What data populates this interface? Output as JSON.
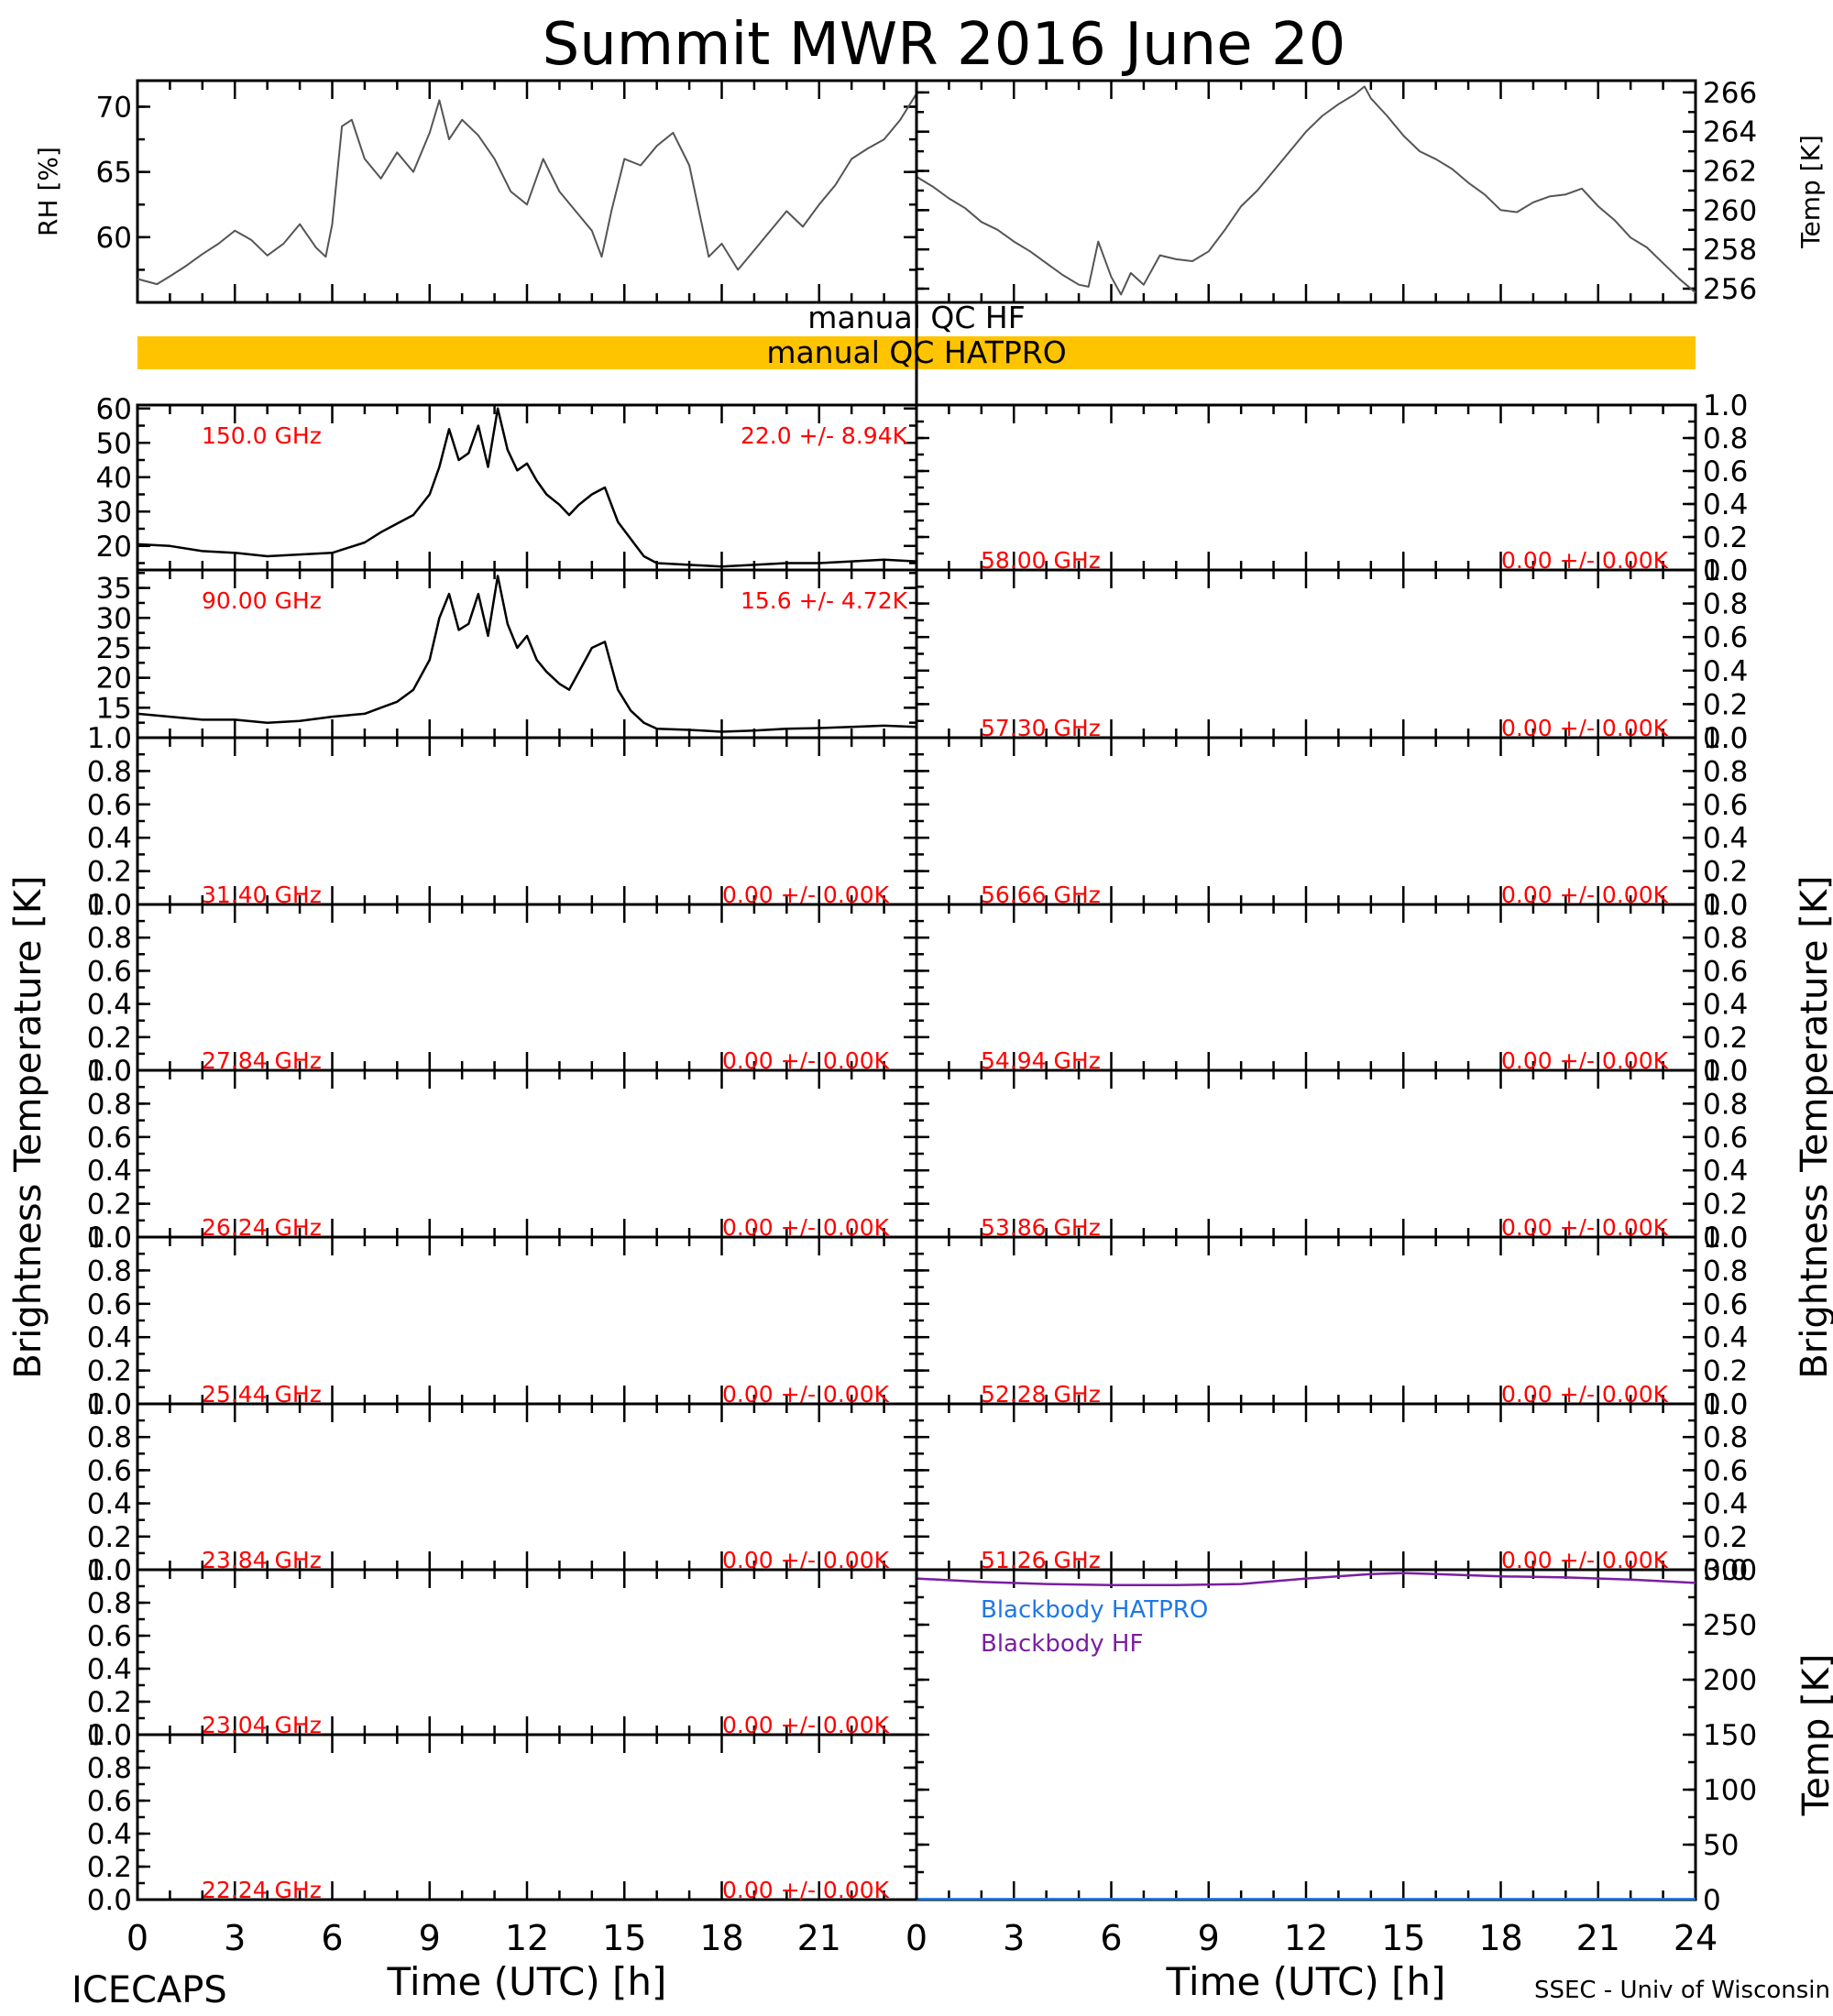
{
  "page": {
    "title": "Summit MWR 2016 June 20",
    "footer_left": "ICECAPS",
    "footer_right": "SSEC - Univ of Wisconsin",
    "xlabel": "Time (UTC) [h]",
    "left_axis_label": "Brightness Temperature [K]",
    "right_axis_label": "Brightness Temperature [K]",
    "qc_hf_label": "manual QC HF",
    "qc_hatpro_label": "manual QC HATPRO",
    "qc_hatpro_color": "#ffc400",
    "x_ticks": [
      "0",
      "3",
      "6",
      "9",
      "12",
      "15",
      "18",
      "21",
      "24"
    ]
  },
  "chart_data": [
    {
      "id": "rh",
      "type": "line",
      "ylabel": "RH [%]",
      "xlim": [
        0,
        24
      ],
      "ylim": [
        55,
        72
      ],
      "y_ticks": [
        "60",
        "65",
        "70"
      ],
      "series": [
        {
          "color": "#555555",
          "x": [
            0,
            0.6,
            1,
            1.5,
            2,
            2.5,
            3,
            3.5,
            4,
            4.5,
            5,
            5.5,
            5.8,
            6,
            6.3,
            6.6,
            7,
            7.5,
            8,
            8.5,
            9,
            9.3,
            9.6,
            10,
            10.5,
            11,
            11.5,
            12,
            12.5,
            13,
            13.5,
            14,
            14.3,
            14.6,
            15,
            15.5,
            16,
            16.5,
            17,
            17.3,
            17.6,
            18,
            18.5,
            19,
            19.5,
            20,
            20.5,
            21,
            21.5,
            22,
            22.5,
            23,
            23.5,
            24
          ],
          "y": [
            56.8,
            56.4,
            57,
            57.8,
            58.7,
            59.5,
            60.5,
            59.8,
            58.6,
            59.5,
            61,
            59.2,
            58.5,
            61,
            68.5,
            69,
            66,
            64.5,
            66.5,
            65,
            68,
            70.5,
            67.5,
            69,
            67.8,
            66,
            63.5,
            62.5,
            66,
            63.5,
            62,
            60.5,
            58.5,
            62,
            66,
            65.5,
            67,
            68,
            65.5,
            62,
            58.5,
            59.5,
            57.5,
            59,
            60.5,
            62,
            60.8,
            62.5,
            64,
            66,
            66.8,
            67.5,
            69,
            71
          ]
        }
      ]
    },
    {
      "id": "temp",
      "type": "line",
      "ylabel": "Temp [K]",
      "xlim": [
        0,
        24
      ],
      "ylim": [
        255.3,
        266.6
      ],
      "y_ticks": [
        "256",
        "258",
        "260",
        "262",
        "264",
        "266"
      ],
      "series": [
        {
          "color": "#555555",
          "x": [
            0,
            0.5,
            1,
            1.5,
            2,
            2.5,
            3,
            3.5,
            4,
            4.5,
            5,
            5.3,
            5.6,
            6,
            6.3,
            6.6,
            7,
            7.5,
            8,
            8.5,
            9,
            9.5,
            10,
            10.5,
            11,
            11.5,
            12,
            12.5,
            13,
            13.5,
            13.8,
            14,
            14.5,
            15,
            15.5,
            16,
            16.5,
            17,
            17.5,
            18,
            18.5,
            19,
            19.5,
            20,
            20.5,
            21,
            21.5,
            22,
            22.5,
            23,
            23.5,
            24
          ],
          "y": [
            261.7,
            261.2,
            260.6,
            260.1,
            259.4,
            259,
            258.4,
            257.9,
            257.3,
            256.7,
            256.2,
            256.1,
            258.4,
            256.6,
            255.7,
            256.8,
            256.2,
            257.7,
            257.5,
            257.4,
            257.9,
            259,
            260.2,
            261,
            262,
            263,
            264,
            264.8,
            265.4,
            265.9,
            266.3,
            265.7,
            264.8,
            263.8,
            263,
            262.6,
            262.1,
            261.4,
            260.8,
            260,
            259.9,
            260.4,
            260.7,
            260.8,
            261.1,
            260.2,
            259.5,
            258.6,
            258.1,
            257.3,
            256.5,
            255.8
          ]
        }
      ]
    },
    {
      "id": "ch150",
      "type": "line",
      "channel": "150.0 GHz",
      "stats": "22.0 +/-  8.94K",
      "xlim": [
        0,
        24
      ],
      "ylim": [
        13,
        61
      ],
      "y_ticks": [
        "20",
        "30",
        "40",
        "50",
        "60"
      ],
      "series": [
        {
          "color": "#000000",
          "x": [
            0,
            1,
            2,
            3,
            4,
            5,
            6,
            7,
            7.5,
            8,
            8.5,
            9,
            9.3,
            9.6,
            9.9,
            10.2,
            10.5,
            10.8,
            11.1,
            11.4,
            11.7,
            12,
            12.3,
            12.6,
            13,
            13.3,
            13.6,
            14,
            14.4,
            14.8,
            15.2,
            15.6,
            16,
            17,
            18,
            19,
            20,
            21,
            22,
            23,
            24
          ],
          "y": [
            20.5,
            20,
            18.5,
            18,
            17,
            17.5,
            18,
            21,
            24,
            26.5,
            29,
            35,
            43,
            54,
            45,
            47,
            55,
            43,
            60,
            48,
            42,
            44,
            39,
            35,
            32,
            29,
            32,
            35,
            37,
            27,
            22,
            17,
            15,
            14.5,
            14,
            14.5,
            15,
            15,
            15.5,
            16,
            15.5
          ]
        }
      ]
    },
    {
      "id": "ch090",
      "type": "line",
      "channel": "90.00 GHz",
      "stats": "15.6 +/-  4.72K",
      "xlim": [
        0,
        24
      ],
      "ylim": [
        10,
        38
      ],
      "y_ticks": [
        "15",
        "20",
        "25",
        "30",
        "35"
      ],
      "series": [
        {
          "color": "#000000",
          "x": [
            0,
            1,
            2,
            3,
            4,
            5,
            6,
            7,
            7.5,
            8,
            8.5,
            9,
            9.3,
            9.6,
            9.9,
            10.2,
            10.5,
            10.8,
            11.1,
            11.4,
            11.7,
            12,
            12.3,
            12.6,
            13,
            13.3,
            13.6,
            14,
            14.4,
            14.8,
            15.2,
            15.6,
            16,
            17,
            18,
            19,
            20,
            21,
            22,
            23,
            24
          ],
          "y": [
            14,
            13.5,
            13,
            13,
            12.5,
            12.8,
            13.5,
            14,
            15,
            16,
            18,
            23,
            30,
            34,
            28,
            29,
            34,
            27,
            37,
            29,
            25,
            27,
            23,
            21,
            19,
            18,
            21,
            25,
            26,
            18,
            14.5,
            12.5,
            11.5,
            11.3,
            11,
            11.2,
            11.5,
            11.6,
            11.8,
            12,
            11.8
          ]
        }
      ]
    },
    {
      "id": "ch3140",
      "type": "line",
      "channel": "31.40 GHz",
      "stats": "0.00 +/-  0.00K",
      "ylim": [
        0,
        1
      ],
      "y_ticks": [
        "0.0",
        "0.2",
        "0.4",
        "0.6",
        "0.8",
        "1.0"
      ],
      "series": []
    },
    {
      "id": "ch2784",
      "type": "line",
      "channel": "27.84 GHz",
      "stats": "0.00 +/-  0.00K",
      "ylim": [
        0,
        1
      ],
      "y_ticks": [
        "0.0",
        "0.2",
        "0.4",
        "0.6",
        "0.8",
        "1.0"
      ],
      "series": []
    },
    {
      "id": "ch2624",
      "type": "line",
      "channel": "26.24 GHz",
      "stats": "0.00 +/-  0.00K",
      "ylim": [
        0,
        1
      ],
      "y_ticks": [
        "0.0",
        "0.2",
        "0.4",
        "0.6",
        "0.8",
        "1.0"
      ],
      "series": []
    },
    {
      "id": "ch2544",
      "type": "line",
      "channel": "25.44 GHz",
      "stats": "0.00 +/-  0.00K",
      "ylim": [
        0,
        1
      ],
      "y_ticks": [
        "0.0",
        "0.2",
        "0.4",
        "0.6",
        "0.8",
        "1.0"
      ],
      "series": []
    },
    {
      "id": "ch2384",
      "type": "line",
      "channel": "23.84 GHz",
      "stats": "0.00 +/-  0.00K",
      "ylim": [
        0,
        1
      ],
      "y_ticks": [
        "0.0",
        "0.2",
        "0.4",
        "0.6",
        "0.8",
        "1.0"
      ],
      "series": []
    },
    {
      "id": "ch2304",
      "type": "line",
      "channel": "23.04 GHz",
      "stats": "0.00 +/-  0.00K",
      "ylim": [
        0,
        1
      ],
      "y_ticks": [
        "0.0",
        "0.2",
        "0.4",
        "0.6",
        "0.8",
        "1.0"
      ],
      "series": []
    },
    {
      "id": "ch2224",
      "type": "line",
      "channel": "22.24 GHz",
      "stats": "0.00 +/-  0.00K",
      "ylim": [
        0,
        1
      ],
      "y_ticks": [
        "0.0",
        "0.2",
        "0.4",
        "0.6",
        "0.8",
        "1.0"
      ],
      "series": []
    },
    {
      "id": "ch5800",
      "type": "line",
      "channel": "58.00 GHz",
      "stats": "0.00 +/-  0.00K",
      "ylim": [
        0,
        1
      ],
      "y_ticks": [
        "0.0",
        "0.2",
        "0.4",
        "0.6",
        "0.8",
        "1.0"
      ],
      "series": []
    },
    {
      "id": "ch5730",
      "type": "line",
      "channel": "57.30 GHz",
      "stats": "0.00 +/-  0.00K",
      "ylim": [
        0,
        1
      ],
      "y_ticks": [
        "0.0",
        "0.2",
        "0.4",
        "0.6",
        "0.8",
        "1.0"
      ],
      "series": []
    },
    {
      "id": "ch5666",
      "type": "line",
      "channel": "56.66 GHz",
      "stats": "0.00 +/-  0.00K",
      "ylim": [
        0,
        1
      ],
      "y_ticks": [
        "0.0",
        "0.2",
        "0.4",
        "0.6",
        "0.8",
        "1.0"
      ],
      "series": []
    },
    {
      "id": "ch5494",
      "type": "line",
      "channel": "54.94 GHz",
      "stats": "0.00 +/-  0.00K",
      "ylim": [
        0,
        1
      ],
      "y_ticks": [
        "0.0",
        "0.2",
        "0.4",
        "0.6",
        "0.8",
        "1.0"
      ],
      "series": []
    },
    {
      "id": "ch5386",
      "type": "line",
      "channel": "53.86 GHz",
      "stats": "0.00 +/-  0.00K",
      "ylim": [
        0,
        1
      ],
      "y_ticks": [
        "0.0",
        "0.2",
        "0.4",
        "0.6",
        "0.8",
        "1.0"
      ],
      "series": []
    },
    {
      "id": "ch5228",
      "type": "line",
      "channel": "52.28 GHz",
      "stats": "0.00 +/-  0.00K",
      "ylim": [
        0,
        1
      ],
      "y_ticks": [
        "0.0",
        "0.2",
        "0.4",
        "0.6",
        "0.8",
        "1.0"
      ],
      "series": []
    },
    {
      "id": "ch5126",
      "type": "line",
      "channel": "51.26 GHz",
      "stats": "0.00 +/-  0.00K",
      "ylim": [
        0,
        1
      ],
      "y_ticks": [
        "0.0",
        "0.2",
        "0.4",
        "0.6",
        "0.8",
        "1.0"
      ],
      "series": []
    },
    {
      "id": "blackbody",
      "type": "line",
      "ylabel": "Temp [K]",
      "xlim": [
        0,
        24
      ],
      "ylim": [
        0,
        300
      ],
      "y_ticks": [
        "0",
        "50",
        "100",
        "150",
        "200",
        "250",
        "300"
      ],
      "series": [
        {
          "name": "Blackbody HATPRO",
          "color": "#1e78e6",
          "x": [
            0,
            24
          ],
          "y": [
            0.5,
            0.5
          ]
        },
        {
          "name": "Blackbody HF",
          "color": "#7a1fa2",
          "x": [
            0,
            2,
            4,
            6,
            8,
            10,
            12,
            14,
            15,
            16,
            18,
            20,
            22,
            24
          ],
          "y": [
            292,
            289,
            287,
            286,
            286,
            287,
            292,
            296,
            297,
            296,
            294,
            293,
            291,
            288
          ]
        }
      ]
    }
  ]
}
